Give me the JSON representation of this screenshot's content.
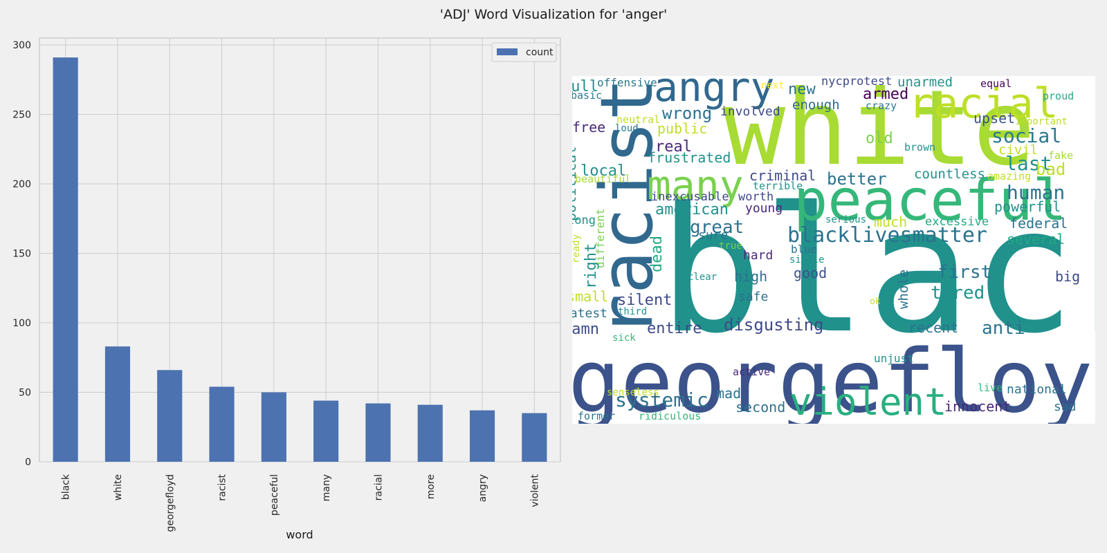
{
  "figure": {
    "title": "'ADJ' Word Visualization for 'anger'"
  },
  "colors": {
    "bar": "#4c72b0",
    "background": "#f0f0f0",
    "grid": "#cccccc",
    "axes_edge": "#bdbdbd"
  },
  "chart_data": [
    {
      "type": "bar",
      "title": "",
      "xlabel": "word",
      "ylabel": "",
      "categories": [
        "black",
        "white",
        "georgefloyd",
        "racist",
        "peaceful",
        "many",
        "racial",
        "more",
        "angry",
        "violent"
      ],
      "series": [
        {
          "name": "count",
          "values": [
            291,
            83,
            66,
            54,
            50,
            44,
            42,
            41,
            37,
            35
          ]
        }
      ],
      "ylim": [
        0,
        305
      ],
      "yticks": [
        0,
        50,
        100,
        150,
        200,
        250,
        300
      ],
      "grid": true,
      "legend": "top-right"
    },
    {
      "type": "wordcloud",
      "words": [
        {
          "text": "black",
          "color": "#21918c"
        },
        {
          "text": "white",
          "color": "#a8db34"
        },
        {
          "text": "georgefloyd",
          "color": "#3b528b"
        },
        {
          "text": "racist",
          "color": "#31688e"
        },
        {
          "text": "peaceful",
          "color": "#35b779"
        },
        {
          "text": "angry",
          "color": "#31688e"
        },
        {
          "text": "racial",
          "color": "#bddf26"
        },
        {
          "text": "many",
          "color": "#7ad151"
        },
        {
          "text": "violent",
          "color": "#29af7f"
        },
        {
          "text": "blacklivesmatter",
          "color": "#2c728e"
        },
        {
          "text": "systemic",
          "color": "#2c728e"
        },
        {
          "text": "disgusting",
          "color": "#3e4989"
        },
        {
          "text": "social",
          "color": "#2a788e"
        },
        {
          "text": "human",
          "color": "#2c728e"
        },
        {
          "text": "wrong",
          "color": "#2c728e"
        },
        {
          "text": "great",
          "color": "#2c728e"
        },
        {
          "text": "american",
          "color": "#21918c"
        },
        {
          "text": "first",
          "color": "#2c728e"
        },
        {
          "text": "tired",
          "color": "#21918c"
        },
        {
          "text": "anti",
          "color": "#2c728e"
        },
        {
          "text": "last",
          "color": "#21918c"
        },
        {
          "text": "better",
          "color": "#2c728e"
        },
        {
          "text": "new",
          "color": "#2c728e"
        },
        {
          "text": "armed",
          "color": "#440154"
        },
        {
          "text": "unarmed",
          "color": "#21918c"
        },
        {
          "text": "nycprotest",
          "color": "#3e4989"
        },
        {
          "text": "full",
          "color": "#21918c"
        },
        {
          "text": "offensive",
          "color": "#2a788e"
        },
        {
          "text": "basic",
          "color": "#2a788e"
        },
        {
          "text": "next",
          "color": "#fde725"
        },
        {
          "text": "equal",
          "color": "#440154"
        },
        {
          "text": "proud",
          "color": "#22a884"
        },
        {
          "text": "involved",
          "color": "#3e4989"
        },
        {
          "text": "enough",
          "color": "#31688e"
        },
        {
          "text": "crazy",
          "color": "#2a788e"
        },
        {
          "text": "upset",
          "color": "#3b528b"
        },
        {
          "text": "important",
          "color": "#bddf26"
        },
        {
          "text": "neutral",
          "color": "#bddf26"
        },
        {
          "text": "loud",
          "color": "#2a788e"
        },
        {
          "text": "free",
          "color": "#482878"
        },
        {
          "text": "public",
          "color": "#bddf26"
        },
        {
          "text": "old",
          "color": "#7ad151"
        },
        {
          "text": "civil",
          "color": "#bddf26"
        },
        {
          "text": "brown",
          "color": "#21918c"
        },
        {
          "text": "fake",
          "color": "#a8db34"
        },
        {
          "text": "real",
          "color": "#482878"
        },
        {
          "text": "frustrated",
          "color": "#21918c"
        },
        {
          "text": "political",
          "color": "#21918c"
        },
        {
          "text": "local",
          "color": "#21918c"
        },
        {
          "text": "criminal",
          "color": "#3e4989"
        },
        {
          "text": "countless",
          "color": "#21918c"
        },
        {
          "text": "bad",
          "color": "#bddf26"
        },
        {
          "text": "beautiful",
          "color": "#a8db34"
        },
        {
          "text": "amazing",
          "color": "#bddf26"
        },
        {
          "text": "terrible",
          "color": "#21918c"
        },
        {
          "text": "inexcusable",
          "color": "#3e4989"
        },
        {
          "text": "worth",
          "color": "#3e4989"
        },
        {
          "text": "young",
          "color": "#482878"
        },
        {
          "text": "powerful",
          "color": "#21918c"
        },
        {
          "text": "long",
          "color": "#21918c"
        },
        {
          "text": "different",
          "color": "#7ad151"
        },
        {
          "text": "serious",
          "color": "#21918c"
        },
        {
          "text": "much",
          "color": "#bddf26"
        },
        {
          "text": "excessive",
          "color": "#22a884"
        },
        {
          "text": "federal",
          "color": "#2c728e"
        },
        {
          "text": "sure",
          "color": "#2c728e"
        },
        {
          "text": "ready",
          "color": "#bddf26"
        },
        {
          "text": "right",
          "color": "#21918c"
        },
        {
          "text": "dead",
          "color": "#22a884"
        },
        {
          "text": "true",
          "color": "#7ad151"
        },
        {
          "text": "blue",
          "color": "#2c728e"
        },
        {
          "text": "single",
          "color": "#21918c"
        },
        {
          "text": "several",
          "color": "#22a884"
        },
        {
          "text": "hard",
          "color": "#482878"
        },
        {
          "text": "whole",
          "color": "#2c728e"
        },
        {
          "text": "big",
          "color": "#3e4989"
        },
        {
          "text": "high",
          "color": "#2c728e"
        },
        {
          "text": "good",
          "color": "#3b528b"
        },
        {
          "text": "clear",
          "color": "#21918c"
        },
        {
          "text": "small",
          "color": "#bddf26"
        },
        {
          "text": "silent",
          "color": "#3e4989"
        },
        {
          "text": "safe",
          "color": "#2c728e"
        },
        {
          "text": "ok",
          "color": "#bddf26"
        },
        {
          "text": "latest",
          "color": "#2c728e"
        },
        {
          "text": "third",
          "color": "#21918c"
        },
        {
          "text": "damn",
          "color": "#3e4989"
        },
        {
          "text": "entire",
          "color": "#3e4989"
        },
        {
          "text": "recent",
          "color": "#2c728e"
        },
        {
          "text": "sick",
          "color": "#35b779"
        },
        {
          "text": "unjust",
          "color": "#21918c"
        },
        {
          "text": "active",
          "color": "#482878"
        },
        {
          "text": "senseless",
          "color": "#bddf26"
        },
        {
          "text": "mad",
          "color": "#2c728e"
        },
        {
          "text": "live",
          "color": "#35b779"
        },
        {
          "text": "national",
          "color": "#2c728e"
        },
        {
          "text": "second",
          "color": "#2c728e"
        },
        {
          "text": "innocent",
          "color": "#482878"
        },
        {
          "text": "sad",
          "color": "#2c728e"
        },
        {
          "text": "former",
          "color": "#2c728e"
        },
        {
          "text": "ridiculous",
          "color": "#35b779"
        }
      ]
    }
  ]
}
